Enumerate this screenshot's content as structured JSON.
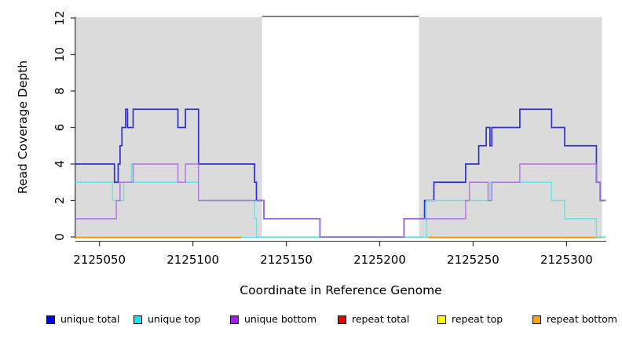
{
  "figure": {
    "y_axis_title": "Read Coverage Depth",
    "x_axis_title": "Coordinate in Reference Genome"
  },
  "chart_data": {
    "type": "line",
    "subtype": "step-coverage",
    "title": "",
    "xlabel": "Coordinate in Reference Genome",
    "ylabel": "Read Coverage Depth",
    "xlim": [
      2125037,
      2125321
    ],
    "ylim": [
      0,
      12
    ],
    "x_ticks": [
      2125050,
      2125100,
      2125150,
      2125200,
      2125250,
      2125300
    ],
    "y_ticks": [
      0,
      2,
      4,
      6,
      8,
      10,
      12
    ],
    "grid": false,
    "legend_position": "bottom",
    "shaded_regions": [
      {
        "x0": 2125037,
        "x1": 2125137,
        "color": "#DBDBDB"
      },
      {
        "x0": 2125221,
        "x1": 2125319,
        "color": "#DBDBDB"
      }
    ],
    "gap_top_line": {
      "x0": 2125137,
      "x1": 2125221,
      "color": "#6B6B6B"
    },
    "series": [
      {
        "name": "unique total",
        "color": "#3030D0",
        "steps": [
          [
            2125037,
            4
          ],
          [
            2125058,
            3
          ],
          [
            2125060,
            4
          ],
          [
            2125061,
            5
          ],
          [
            2125062,
            6
          ],
          [
            2125064,
            7
          ],
          [
            2125065,
            6
          ],
          [
            2125068,
            7
          ],
          [
            2125092,
            6
          ],
          [
            2125096,
            7
          ],
          [
            2125103,
            4
          ],
          [
            2125133,
            3
          ],
          [
            2125134,
            2
          ],
          [
            2125138,
            1
          ],
          [
            2125168,
            0
          ],
          [
            2125213,
            1
          ],
          [
            2125224,
            2
          ],
          [
            2125229,
            3
          ],
          [
            2125246,
            4
          ],
          [
            2125253,
            5
          ],
          [
            2125257,
            6
          ],
          [
            2125259,
            5
          ],
          [
            2125260,
            6
          ],
          [
            2125275,
            7
          ],
          [
            2125292,
            6
          ],
          [
            2125299,
            5
          ],
          [
            2125316,
            3
          ],
          [
            2125318,
            2
          ]
        ],
        "x_end": 2125321
      },
      {
        "name": "unique top",
        "color": "#66E4E8",
        "steps": [
          [
            2125037,
            3
          ],
          [
            2125057,
            2
          ],
          [
            2125063,
            3
          ],
          [
            2125067,
            4
          ],
          [
            2125068,
            3
          ],
          [
            2125103,
            2
          ],
          [
            2125133,
            1
          ],
          [
            2125134,
            0
          ],
          [
            2125225,
            2
          ],
          [
            2125259,
            3
          ],
          [
            2125292,
            2
          ],
          [
            2125299,
            1
          ],
          [
            2125316,
            0
          ]
        ],
        "x_end": 2125321
      },
      {
        "name": "unique bottom",
        "color": "#AB6FE0",
        "steps": [
          [
            2125037,
            1
          ],
          [
            2125059,
            2
          ],
          [
            2125061,
            3
          ],
          [
            2125068,
            4
          ],
          [
            2125092,
            3
          ],
          [
            2125096,
            4
          ],
          [
            2125103,
            2
          ],
          [
            2125138,
            1
          ],
          [
            2125168,
            0
          ],
          [
            2125213,
            1
          ],
          [
            2125246,
            2
          ],
          [
            2125248,
            3
          ],
          [
            2125258,
            2
          ],
          [
            2125260,
            3
          ],
          [
            2125275,
            4
          ],
          [
            2125316,
            3
          ],
          [
            2125318,
            2
          ]
        ],
        "x_end": 2125321
      },
      {
        "name": "repeat total",
        "color": "#DD0000",
        "steps": [
          [
            2125037,
            0
          ]
        ],
        "x_end": 2125321
      },
      {
        "name": "repeat top",
        "color": "#F5F500",
        "steps": [
          [
            2125037,
            0
          ]
        ],
        "x_end": 2125321
      },
      {
        "name": "repeat bottom",
        "color": "#FF9800",
        "steps": [
          [
            2125037,
            0
          ]
        ],
        "x_end": 2125321
      }
    ],
    "zero_line_segments": [
      {
        "x0": 2125037,
        "x1": 2125126,
        "color": "#FF9800"
      },
      {
        "x0": 2125126,
        "x1": 2125138,
        "color": "#66E4E8"
      },
      {
        "x0": 2125138,
        "x1": 2125226,
        "color": "#9AD7A4"
      },
      {
        "x0": 2125226,
        "x1": 2125319,
        "color": "#FF9800"
      },
      {
        "x0": 2125319,
        "x1": 2125321,
        "color": "#9AD7A4"
      }
    ]
  },
  "legend": {
    "items": [
      {
        "label": "unique total",
        "color": "#0000EE"
      },
      {
        "label": "unique top",
        "color": "#00EEEE"
      },
      {
        "label": "unique bottom",
        "color": "#A020F0"
      },
      {
        "label": "repeat total",
        "color": "#EE0000"
      },
      {
        "label": "repeat top",
        "color": "#FFFF00"
      },
      {
        "label": "repeat bottom",
        "color": "#FFA500"
      }
    ]
  }
}
